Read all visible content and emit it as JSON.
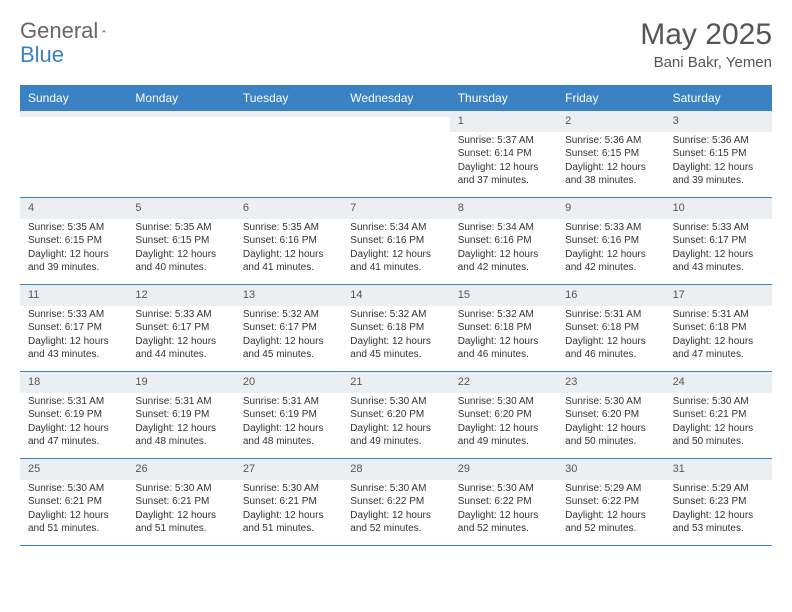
{
  "brand": {
    "text1": "General",
    "text2": "Blue"
  },
  "title": "May 2025",
  "location": "Bani Bakr, Yemen",
  "colors": {
    "header_bg": "#3b82c4",
    "header_text": "#ffffff",
    "daynum_bg": "#eceff1",
    "row_border": "#3b82c4",
    "text": "#333333"
  },
  "day_names": [
    "Sunday",
    "Monday",
    "Tuesday",
    "Wednesday",
    "Thursday",
    "Friday",
    "Saturday"
  ],
  "weeks": [
    [
      {
        "n": "",
        "sr": "",
        "ss": "",
        "dl": ""
      },
      {
        "n": "",
        "sr": "",
        "ss": "",
        "dl": ""
      },
      {
        "n": "",
        "sr": "",
        "ss": "",
        "dl": ""
      },
      {
        "n": "",
        "sr": "",
        "ss": "",
        "dl": ""
      },
      {
        "n": "1",
        "sr": "Sunrise: 5:37 AM",
        "ss": "Sunset: 6:14 PM",
        "dl": "Daylight: 12 hours and 37 minutes."
      },
      {
        "n": "2",
        "sr": "Sunrise: 5:36 AM",
        "ss": "Sunset: 6:15 PM",
        "dl": "Daylight: 12 hours and 38 minutes."
      },
      {
        "n": "3",
        "sr": "Sunrise: 5:36 AM",
        "ss": "Sunset: 6:15 PM",
        "dl": "Daylight: 12 hours and 39 minutes."
      }
    ],
    [
      {
        "n": "4",
        "sr": "Sunrise: 5:35 AM",
        "ss": "Sunset: 6:15 PM",
        "dl": "Daylight: 12 hours and 39 minutes."
      },
      {
        "n": "5",
        "sr": "Sunrise: 5:35 AM",
        "ss": "Sunset: 6:15 PM",
        "dl": "Daylight: 12 hours and 40 minutes."
      },
      {
        "n": "6",
        "sr": "Sunrise: 5:35 AM",
        "ss": "Sunset: 6:16 PM",
        "dl": "Daylight: 12 hours and 41 minutes."
      },
      {
        "n": "7",
        "sr": "Sunrise: 5:34 AM",
        "ss": "Sunset: 6:16 PM",
        "dl": "Daylight: 12 hours and 41 minutes."
      },
      {
        "n": "8",
        "sr": "Sunrise: 5:34 AM",
        "ss": "Sunset: 6:16 PM",
        "dl": "Daylight: 12 hours and 42 minutes."
      },
      {
        "n": "9",
        "sr": "Sunrise: 5:33 AM",
        "ss": "Sunset: 6:16 PM",
        "dl": "Daylight: 12 hours and 42 minutes."
      },
      {
        "n": "10",
        "sr": "Sunrise: 5:33 AM",
        "ss": "Sunset: 6:17 PM",
        "dl": "Daylight: 12 hours and 43 minutes."
      }
    ],
    [
      {
        "n": "11",
        "sr": "Sunrise: 5:33 AM",
        "ss": "Sunset: 6:17 PM",
        "dl": "Daylight: 12 hours and 43 minutes."
      },
      {
        "n": "12",
        "sr": "Sunrise: 5:33 AM",
        "ss": "Sunset: 6:17 PM",
        "dl": "Daylight: 12 hours and 44 minutes."
      },
      {
        "n": "13",
        "sr": "Sunrise: 5:32 AM",
        "ss": "Sunset: 6:17 PM",
        "dl": "Daylight: 12 hours and 45 minutes."
      },
      {
        "n": "14",
        "sr": "Sunrise: 5:32 AM",
        "ss": "Sunset: 6:18 PM",
        "dl": "Daylight: 12 hours and 45 minutes."
      },
      {
        "n": "15",
        "sr": "Sunrise: 5:32 AM",
        "ss": "Sunset: 6:18 PM",
        "dl": "Daylight: 12 hours and 46 minutes."
      },
      {
        "n": "16",
        "sr": "Sunrise: 5:31 AM",
        "ss": "Sunset: 6:18 PM",
        "dl": "Daylight: 12 hours and 46 minutes."
      },
      {
        "n": "17",
        "sr": "Sunrise: 5:31 AM",
        "ss": "Sunset: 6:18 PM",
        "dl": "Daylight: 12 hours and 47 minutes."
      }
    ],
    [
      {
        "n": "18",
        "sr": "Sunrise: 5:31 AM",
        "ss": "Sunset: 6:19 PM",
        "dl": "Daylight: 12 hours and 47 minutes."
      },
      {
        "n": "19",
        "sr": "Sunrise: 5:31 AM",
        "ss": "Sunset: 6:19 PM",
        "dl": "Daylight: 12 hours and 48 minutes."
      },
      {
        "n": "20",
        "sr": "Sunrise: 5:31 AM",
        "ss": "Sunset: 6:19 PM",
        "dl": "Daylight: 12 hours and 48 minutes."
      },
      {
        "n": "21",
        "sr": "Sunrise: 5:30 AM",
        "ss": "Sunset: 6:20 PM",
        "dl": "Daylight: 12 hours and 49 minutes."
      },
      {
        "n": "22",
        "sr": "Sunrise: 5:30 AM",
        "ss": "Sunset: 6:20 PM",
        "dl": "Daylight: 12 hours and 49 minutes."
      },
      {
        "n": "23",
        "sr": "Sunrise: 5:30 AM",
        "ss": "Sunset: 6:20 PM",
        "dl": "Daylight: 12 hours and 50 minutes."
      },
      {
        "n": "24",
        "sr": "Sunrise: 5:30 AM",
        "ss": "Sunset: 6:21 PM",
        "dl": "Daylight: 12 hours and 50 minutes."
      }
    ],
    [
      {
        "n": "25",
        "sr": "Sunrise: 5:30 AM",
        "ss": "Sunset: 6:21 PM",
        "dl": "Daylight: 12 hours and 51 minutes."
      },
      {
        "n": "26",
        "sr": "Sunrise: 5:30 AM",
        "ss": "Sunset: 6:21 PM",
        "dl": "Daylight: 12 hours and 51 minutes."
      },
      {
        "n": "27",
        "sr": "Sunrise: 5:30 AM",
        "ss": "Sunset: 6:21 PM",
        "dl": "Daylight: 12 hours and 51 minutes."
      },
      {
        "n": "28",
        "sr": "Sunrise: 5:30 AM",
        "ss": "Sunset: 6:22 PM",
        "dl": "Daylight: 12 hours and 52 minutes."
      },
      {
        "n": "29",
        "sr": "Sunrise: 5:30 AM",
        "ss": "Sunset: 6:22 PM",
        "dl": "Daylight: 12 hours and 52 minutes."
      },
      {
        "n": "30",
        "sr": "Sunrise: 5:29 AM",
        "ss": "Sunset: 6:22 PM",
        "dl": "Daylight: 12 hours and 52 minutes."
      },
      {
        "n": "31",
        "sr": "Sunrise: 5:29 AM",
        "ss": "Sunset: 6:23 PM",
        "dl": "Daylight: 12 hours and 53 minutes."
      }
    ]
  ]
}
